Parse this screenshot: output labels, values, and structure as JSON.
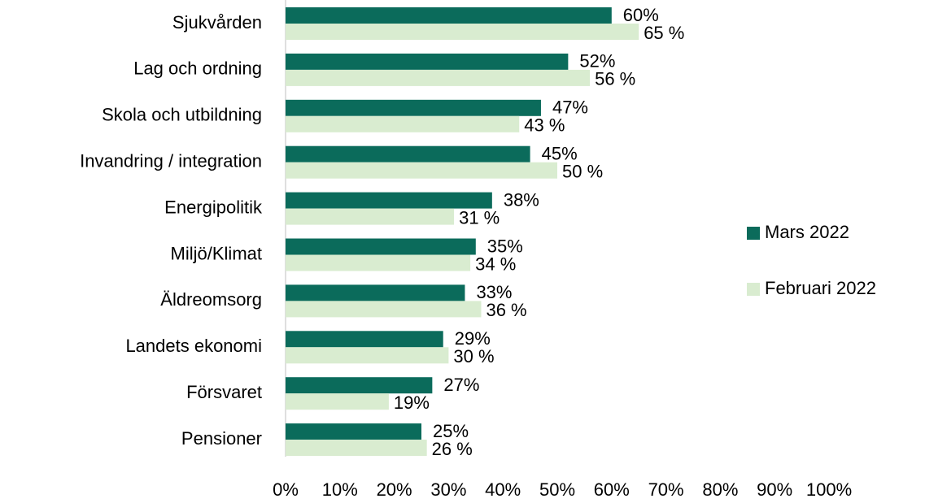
{
  "chart_data": {
    "type": "hbar",
    "categories": [
      "Sjukvården",
      "Lag och ordning",
      "Skola och utbildning",
      "Invandring / integration",
      "Energipolitik",
      "Miljö/Klimat",
      "Äldreomsorg",
      "Landets ekonomi",
      "Försvaret",
      "Pensioner"
    ],
    "series": [
      {
        "name": "Mars 2022",
        "color": "#0b6b5b",
        "values": [
          60,
          52,
          47,
          45,
          38,
          35,
          33,
          29,
          27,
          25
        ],
        "value_labels": [
          "60%",
          "52%",
          "47%",
          "45%",
          "38%",
          "35%",
          "33%",
          "29%",
          "27%",
          "25%"
        ]
      },
      {
        "name": "Februari 2022",
        "color": "#d9ecd0",
        "values": [
          65,
          56,
          43,
          50,
          31,
          34,
          36,
          30,
          19,
          26
        ],
        "value_labels": [
          "65 %",
          "56 %",
          "43 %",
          "50 %",
          "31 %",
          "34 %",
          "36 %",
          "30 %",
          "19%",
          "26 %"
        ]
      }
    ],
    "xlim": [
      0,
      100
    ],
    "xticks": [
      {
        "value": 0,
        "label": "0%"
      },
      {
        "value": 10,
        "label": "10%"
      },
      {
        "value": 20,
        "label": "20%"
      },
      {
        "value": 30,
        "label": "30%"
      },
      {
        "value": 40,
        "label": "40%"
      },
      {
        "value": 50,
        "label": "50%"
      },
      {
        "value": 60,
        "label": "60%"
      },
      {
        "value": 70,
        "label": "70%"
      },
      {
        "value": 80,
        "label": "80%"
      },
      {
        "value": 90,
        "label": "90%"
      },
      {
        "value": 100,
        "label": "100%"
      }
    ],
    "legend": "right"
  }
}
